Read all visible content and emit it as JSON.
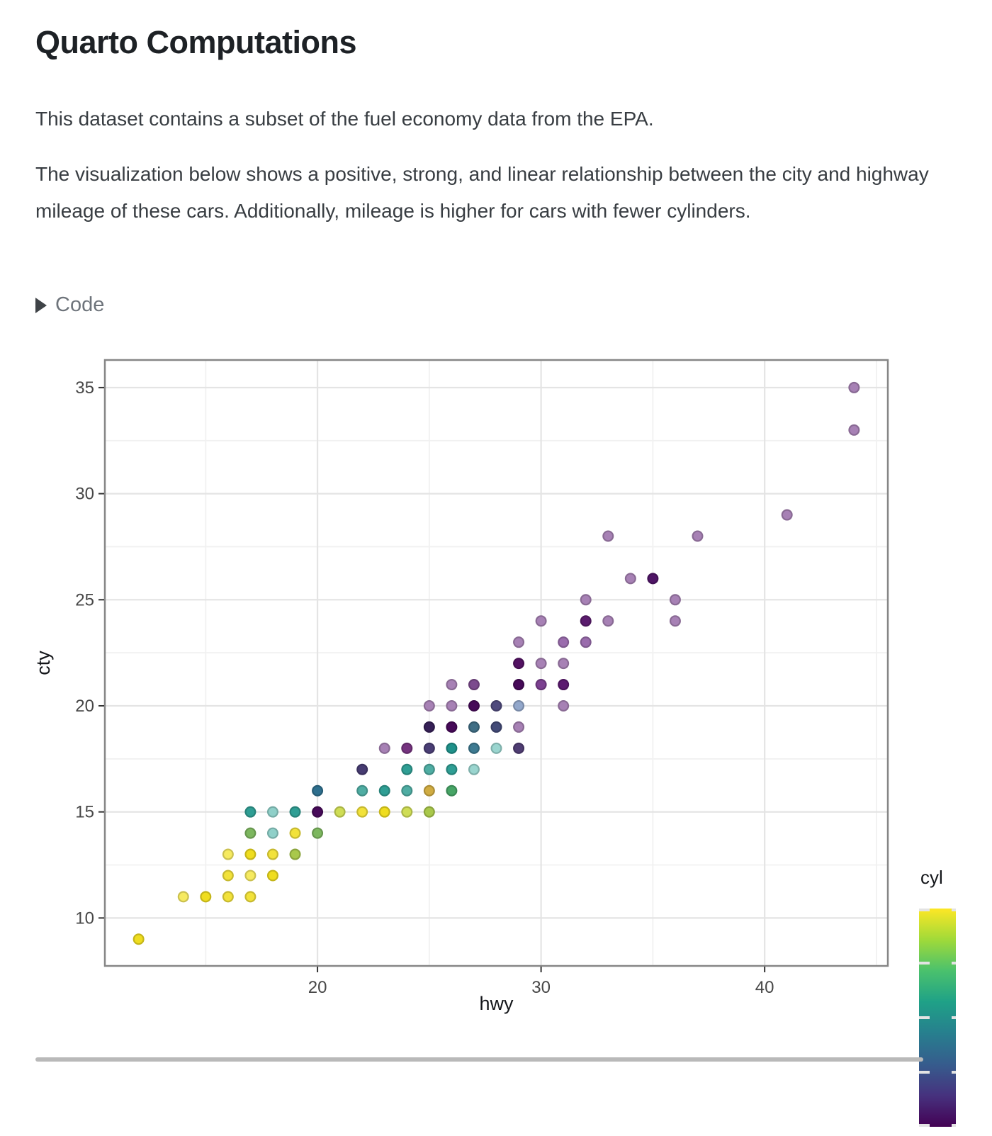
{
  "page": {
    "title": "Quarto Computations",
    "paragraph1": "This dataset contains a subset of the fuel economy data from the EPA.",
    "paragraph2": "The visualization below shows a positive, strong, and linear relationship between the city and highway mileage of these cars. Additionally, mileage is higher for cars with fewer cylinders.",
    "code_toggle_label": "Code"
  },
  "chart_data": {
    "type": "scatter",
    "title": "",
    "xlabel": "hwy",
    "ylabel": "cty",
    "xlim": [
      10.49,
      45.51
    ],
    "ylim": [
      7.74,
      36.3
    ],
    "x_ticks": [
      20,
      30,
      40
    ],
    "y_ticks": [
      10,
      15,
      20,
      25,
      30,
      35
    ],
    "x_minor": [
      15,
      25,
      35,
      45
    ],
    "y_minor": [
      12.5,
      17.5,
      22.5,
      27.5,
      32.5
    ],
    "grid": true,
    "legend": {
      "title": "cyl",
      "scale": "viridis",
      "bottom_value": 4,
      "top_value": 8,
      "tick_values": [
        4,
        5,
        6,
        7,
        8
      ],
      "gradient_stops_bottom_to_top": [
        "#440154",
        "#46327e",
        "#365c8d",
        "#277f8e",
        "#1fa187",
        "#4ac16d",
        "#a0da39",
        "#fde725"
      ],
      "position": "right",
      "labels_visible": false
    },
    "points": [
      {
        "hwy": 12,
        "cty": 9,
        "color": "#efdd1f"
      },
      {
        "hwy": 14,
        "cty": 11,
        "color": "#f6ea60"
      },
      {
        "hwy": 15,
        "cty": 11,
        "color": "#efdd1f"
      },
      {
        "hwy": 16,
        "cty": 11,
        "color": "#f2e23a"
      },
      {
        "hwy": 17,
        "cty": 11,
        "color": "#f2e23a"
      },
      {
        "hwy": 16,
        "cty": 12,
        "color": "#f2e23a"
      },
      {
        "hwy": 17,
        "cty": 12,
        "color": "#f6ea60"
      },
      {
        "hwy": 18,
        "cty": 12,
        "color": "#efdd1f"
      },
      {
        "hwy": 16,
        "cty": 13,
        "color": "#f6ea60"
      },
      {
        "hwy": 17,
        "cty": 13,
        "color": "#efdd1f"
      },
      {
        "hwy": 18,
        "cty": 13,
        "color": "#f2e23a"
      },
      {
        "hwy": 19,
        "cty": 13,
        "color": "#a9c84b"
      },
      {
        "hwy": 17,
        "cty": 14,
        "color": "#7db75f"
      },
      {
        "hwy": 18,
        "cty": 14,
        "color": "#8fd0c9"
      },
      {
        "hwy": 19,
        "cty": 14,
        "color": "#f2e23a"
      },
      {
        "hwy": 20,
        "cty": 14,
        "color": "#7db75f"
      },
      {
        "hwy": 17,
        "cty": 15,
        "color": "#2f9e94"
      },
      {
        "hwy": 18,
        "cty": 15,
        "color": "#8fd0c9"
      },
      {
        "hwy": 19,
        "cty": 15,
        "color": "#2f9e94"
      },
      {
        "hwy": 20,
        "cty": 15,
        "color": "#470a59"
      },
      {
        "hwy": 21,
        "cty": 15,
        "color": "#cfdd55"
      },
      {
        "hwy": 22,
        "cty": 15,
        "color": "#f2e23a"
      },
      {
        "hwy": 23,
        "cty": 15,
        "color": "#efdd1f"
      },
      {
        "hwy": 24,
        "cty": 15,
        "color": "#cfdd55"
      },
      {
        "hwy": 25,
        "cty": 15,
        "color": "#a9c84b"
      },
      {
        "hwy": 20,
        "cty": 16,
        "color": "#2e6f8e"
      },
      {
        "hwy": 22,
        "cty": 16,
        "color": "#4fada3"
      },
      {
        "hwy": 23,
        "cty": 16,
        "color": "#2f9e94"
      },
      {
        "hwy": 24,
        "cty": 16,
        "color": "#4fada3"
      },
      {
        "hwy": 25,
        "cty": 16,
        "color": "#d0ac42"
      },
      {
        "hwy": 26,
        "cty": 16,
        "color": "#47a566"
      },
      {
        "hwy": 22,
        "cty": 17,
        "color": "#473c72"
      },
      {
        "hwy": 24,
        "cty": 17,
        "color": "#2f9e94"
      },
      {
        "hwy": 25,
        "cty": 17,
        "color": "#4fada3"
      },
      {
        "hwy": 26,
        "cty": 17,
        "color": "#2f9e94"
      },
      {
        "hwy": 27,
        "cty": 17,
        "color": "#9ad5cf"
      },
      {
        "hwy": 23,
        "cty": 18,
        "color": "#a781b5"
      },
      {
        "hwy": 24,
        "cty": 18,
        "color": "#75337f"
      },
      {
        "hwy": 25,
        "cty": 18,
        "color": "#4a3e75"
      },
      {
        "hwy": 26,
        "cty": 18,
        "color": "#1f918a"
      },
      {
        "hwy": 27,
        "cty": 18,
        "color": "#3d7a91"
      },
      {
        "hwy": 28,
        "cty": 18,
        "color": "#9ad5cf"
      },
      {
        "hwy": 29,
        "cty": 18,
        "color": "#4f3d73"
      },
      {
        "hwy": 25,
        "cty": 19,
        "color": "#362057"
      },
      {
        "hwy": 26,
        "cty": 19,
        "color": "#470a59"
      },
      {
        "hwy": 27,
        "cty": 19,
        "color": "#3f6e85"
      },
      {
        "hwy": 28,
        "cty": 19,
        "color": "#434b78"
      },
      {
        "hwy": 29,
        "cty": 19,
        "color": "#a781b5"
      },
      {
        "hwy": 25,
        "cty": 20,
        "color": "#a781b5"
      },
      {
        "hwy": 26,
        "cty": 20,
        "color": "#a781b5"
      },
      {
        "hwy": 27,
        "cty": 20,
        "color": "#470a59"
      },
      {
        "hwy": 28,
        "cty": 20,
        "color": "#4f4a7e"
      },
      {
        "hwy": 29,
        "cty": 20,
        "color": "#92a7cb"
      },
      {
        "hwy": 31,
        "cty": 20,
        "color": "#a781b5"
      },
      {
        "hwy": 26,
        "cty": 21,
        "color": "#a781b5"
      },
      {
        "hwy": 27,
        "cty": 21,
        "color": "#7c4b8e"
      },
      {
        "hwy": 29,
        "cty": 21,
        "color": "#470a59"
      },
      {
        "hwy": 30,
        "cty": 21,
        "color": "#7b4090"
      },
      {
        "hwy": 31,
        "cty": 21,
        "color": "#5c1a70"
      },
      {
        "hwy": 29,
        "cty": 22,
        "color": "#531263"
      },
      {
        "hwy": 30,
        "cty": 22,
        "color": "#a781b5"
      },
      {
        "hwy": 31,
        "cty": 22,
        "color": "#a781b5"
      },
      {
        "hwy": 29,
        "cty": 23,
        "color": "#a781b5"
      },
      {
        "hwy": 31,
        "cty": 23,
        "color": "#9a6cad"
      },
      {
        "hwy": 32,
        "cty": 23,
        "color": "#9a6cad"
      },
      {
        "hwy": 30,
        "cty": 24,
        "color": "#a781b5"
      },
      {
        "hwy": 32,
        "cty": 24,
        "color": "#5b1c6e"
      },
      {
        "hwy": 33,
        "cty": 24,
        "color": "#a781b5"
      },
      {
        "hwy": 36,
        "cty": 24,
        "color": "#a781b5"
      },
      {
        "hwy": 32,
        "cty": 25,
        "color": "#a781b5"
      },
      {
        "hwy": 36,
        "cty": 25,
        "color": "#a781b5"
      },
      {
        "hwy": 34,
        "cty": 26,
        "color": "#a781b5"
      },
      {
        "hwy": 35,
        "cty": 26,
        "color": "#4f1566"
      },
      {
        "hwy": 33,
        "cty": 28,
        "color": "#a781b5"
      },
      {
        "hwy": 37,
        "cty": 28,
        "color": "#a781b5"
      },
      {
        "hwy": 41,
        "cty": 29,
        "color": "#a781b5"
      },
      {
        "hwy": 44,
        "cty": 33,
        "color": "#a781b5"
      },
      {
        "hwy": 44,
        "cty": 35,
        "color": "#a781b5"
      }
    ]
  },
  "style_colors": {
    "panel_border": "#868686",
    "grid_major": "#e4e4e4",
    "grid_minor": "#f1f1f1",
    "tick_mark": "#333333",
    "tick_label": "#474747",
    "axis_title": "#14161a",
    "divider": "#b9b9b9"
  }
}
